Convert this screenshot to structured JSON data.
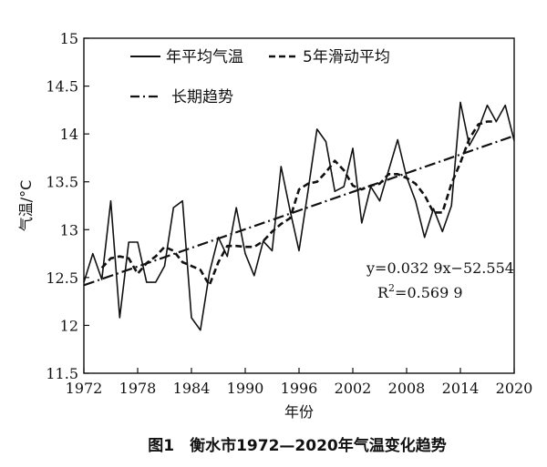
{
  "chart_data": {
    "type": "line",
    "title": "",
    "caption": "图1　衡水市1972—2020年气温变化趋势",
    "xlabel": "年份",
    "ylabel": "气温/°C",
    "xlim": [
      1972,
      2020
    ],
    "ylim": [
      11.5,
      15
    ],
    "x_ticks": [
      "1972",
      "1978",
      "1984",
      "1990",
      "1996",
      "2002",
      "2008",
      "2014",
      "2020"
    ],
    "y_ticks": [
      "11.5",
      "12",
      "12.5",
      "13",
      "13.5",
      "14",
      "14.5",
      "15"
    ],
    "grid": false,
    "legend_position": "top-left",
    "x": [
      1972,
      1973,
      1974,
      1975,
      1976,
      1977,
      1978,
      1979,
      1980,
      1981,
      1982,
      1983,
      1984,
      1985,
      1986,
      1987,
      1988,
      1989,
      1990,
      1991,
      1992,
      1993,
      1994,
      1995,
      1996,
      1997,
      1998,
      1999,
      2000,
      2001,
      2002,
      2003,
      2004,
      2005,
      2006,
      2007,
      2008,
      2009,
      2010,
      2011,
      2012,
      2013,
      2014,
      2015,
      2016,
      2017,
      2018,
      2019,
      2020
    ],
    "series": [
      {
        "name": "年平均气温",
        "style": "solid",
        "values": [
          12.45,
          12.75,
          12.48,
          13.3,
          12.08,
          12.87,
          12.87,
          12.45,
          12.45,
          12.62,
          13.23,
          13.3,
          12.08,
          11.95,
          12.55,
          12.92,
          12.72,
          13.23,
          12.75,
          12.52,
          12.88,
          12.78,
          13.66,
          13.2,
          12.78,
          13.4,
          14.05,
          13.92,
          13.4,
          13.45,
          13.85,
          13.07,
          13.45,
          13.3,
          13.62,
          13.94,
          13.55,
          13.3,
          12.92,
          13.22,
          12.98,
          13.25,
          14.33,
          13.88,
          14.05,
          14.3,
          14.13,
          14.3,
          13.93
        ]
      },
      {
        "name": "5年滑动平均",
        "style": "dashed",
        "values": [
          null,
          null,
          12.6,
          12.7,
          12.72,
          12.7,
          12.54,
          12.65,
          12.72,
          12.82,
          12.78,
          12.66,
          12.62,
          12.58,
          12.42,
          12.66,
          12.83,
          12.83,
          12.82,
          12.82,
          12.88,
          12.98,
          13.06,
          13.12,
          13.42,
          13.48,
          13.5,
          13.6,
          13.72,
          13.62,
          13.46,
          13.42,
          13.46,
          13.48,
          13.58,
          13.58,
          13.54,
          13.48,
          13.36,
          13.18,
          13.18,
          13.48,
          13.7,
          13.95,
          14.1,
          14.13,
          14.13,
          null,
          null
        ]
      },
      {
        "name": "长期趋势",
        "style": "dashdot",
        "values": [
          12.42,
          13.98
        ],
        "x": [
          1972,
          2020
        ]
      }
    ],
    "annotations": {
      "equation": "y=0.032 9x−52.554",
      "r2_prefix": "R",
      "r2_sup": "2",
      "r2_value": "=0.569 9"
    }
  }
}
